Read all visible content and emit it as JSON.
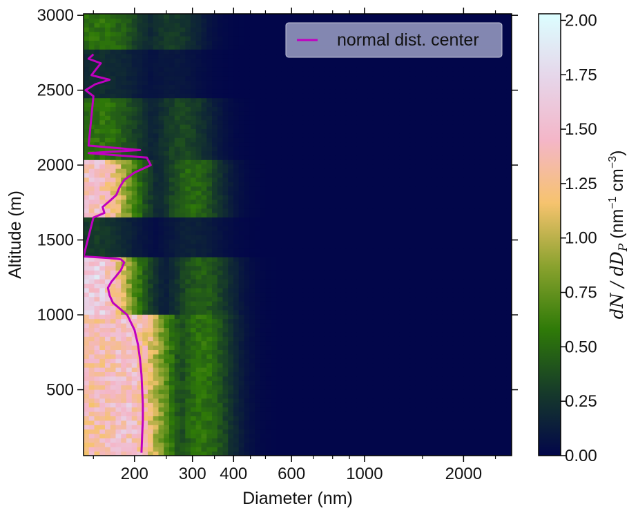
{
  "chart_data": {
    "type": "heatmap",
    "title": "",
    "xlabel": "Diameter (nm)",
    "ylabel": "Altitude (m)",
    "x_scale": "log",
    "xlim": [
      140,
      2800
    ],
    "ylim": [
      60,
      3010
    ],
    "x_ticks": [
      200,
      300,
      400,
      600,
      1000,
      2000
    ],
    "x_tick_labels": [
      "200",
      "300",
      "400",
      "600",
      "1000",
      "2000"
    ],
    "y_ticks": [
      500,
      1000,
      1500,
      2000,
      2500,
      3000
    ],
    "y_tick_labels": [
      "500",
      "1000",
      "1500",
      "2000",
      "2500",
      "3000"
    ],
    "colorbar": {
      "label": "dN / dD_P (nm⁻¹ cm⁻³)",
      "label_main": "dN / dD",
      "label_sub": "P",
      "label_units": " (nm",
      "label_exp1": "−1",
      "label_mid": " cm",
      "label_exp2": "−3",
      "label_close": ")",
      "range": [
        0.0,
        2.03
      ],
      "ticks": [
        0.0,
        0.25,
        0.5,
        0.75,
        1.0,
        1.25,
        1.5,
        1.75,
        2.0
      ],
      "tick_labels": [
        "0.00",
        "0.25",
        "0.50",
        "0.75",
        "1.00",
        "1.25",
        "1.50",
        "1.75",
        "2.00"
      ],
      "colormap": "cubehelix-like (navy → green → olive → orange → pink → light cyan)",
      "colors": [
        "#02064a",
        "#163a2a",
        "#2f7a08",
        "#8aa22e",
        "#f6c36e",
        "#f4b6c8",
        "#e6d6ea",
        "#dcfeff"
      ]
    },
    "legend": {
      "location": "top-right",
      "entries": [
        {
          "label": "normal dist. center",
          "color": "#c000c0"
        }
      ]
    },
    "series": [
      {
        "name": "normal dist. center",
        "type": "line",
        "color": "#c000c0",
        "x_diameter_nm": [
          210,
          211,
          212,
          212,
          211,
          210,
          208,
          205,
          200,
          190,
          172,
          168,
          166,
          170,
          176,
          182,
          186,
          182,
          176,
          165,
          152,
          140,
          150,
          162,
          160,
          168,
          176,
          180,
          186,
          200,
          224,
          218,
          145,
          208,
          145,
          150,
          142,
          152,
          168,
          148,
          158,
          145,
          150
        ],
        "y_altitude_m": [
          80,
          200,
          300,
          400,
          500,
          600,
          700,
          800,
          900,
          1000,
          1080,
          1130,
          1180,
          1220,
          1260,
          1300,
          1350,
          1370,
          1375,
          1380,
          1385,
          1390,
          1650,
          1680,
          1720,
          1760,
          1800,
          1850,
          1900,
          1950,
          2000,
          2050,
          2080,
          2100,
          2130,
          2460,
          2500,
          2540,
          2570,
          2600,
          2680,
          2710,
          2740
        ]
      }
    ],
    "heatmap_bands": [
      {
        "altitude_range_m": [
          60,
          1000
        ],
        "peak_value": 1.5,
        "peak_diameter_nm": 190,
        "secondary_peak_diameter_nm": 320,
        "secondary_value": 0.55
      },
      {
        "altitude_range_m": [
          1000,
          1380
        ],
        "peak_value": 1.65,
        "peak_diameter_nm": 150,
        "secondary_peak_diameter_nm": 320,
        "secondary_value": 0.45
      },
      {
        "altitude_range_m": [
          1380,
          1640
        ],
        "peak_value": 0.3,
        "peak_diameter_nm": 150,
        "secondary_peak_diameter_nm": 300,
        "secondary_value": 0.15
      },
      {
        "altitude_range_m": [
          1640,
          2040
        ],
        "peak_value": 1.5,
        "peak_diameter_nm": 150,
        "secondary_peak_diameter_nm": 300,
        "secondary_value": 0.5
      },
      {
        "altitude_range_m": [
          2040,
          2440
        ],
        "peak_value": 0.55,
        "peak_diameter_nm": 160,
        "secondary_peak_diameter_nm": 280,
        "secondary_value": 0.35
      },
      {
        "altitude_range_m": [
          2440,
          2760
        ],
        "peak_value": 0.22,
        "peak_diameter_nm": 160,
        "secondary_peak_diameter_nm": 260,
        "secondary_value": 0.1
      },
      {
        "altitude_range_m": [
          2760,
          3010
        ],
        "peak_value": 0.55,
        "peak_diameter_nm": 160,
        "secondary_peak_diameter_nm": 260,
        "secondary_value": 0.3
      }
    ]
  }
}
